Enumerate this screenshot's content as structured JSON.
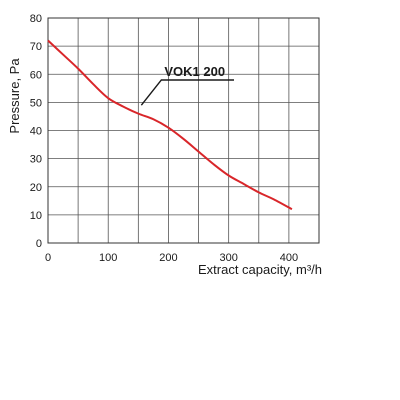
{
  "chart_data": {
    "type": "line",
    "title": "",
    "xlabel": "Extract capacity, m³/h",
    "ylabel": "Pressure, Pa",
    "xlim": [
      0,
      450
    ],
    "ylim": [
      0,
      80
    ],
    "x_ticks": [
      0,
      100,
      200,
      300,
      400
    ],
    "y_ticks": [
      0,
      10,
      20,
      30,
      40,
      50,
      60,
      70,
      80
    ],
    "grid": true,
    "series": [
      {
        "name": "VOK1 200",
        "color": "#d9262a",
        "x": [
          0,
          25,
          50,
          75,
          100,
          125,
          150,
          175,
          200,
          225,
          250,
          275,
          300,
          325,
          350,
          375,
          405
        ],
        "y": [
          72,
          67,
          62,
          56.5,
          51.5,
          48.5,
          46,
          44,
          41,
          37,
          32.5,
          28,
          24,
          21,
          18,
          15.5,
          12
        ]
      }
    ],
    "annotations": [
      {
        "text": "VOK1 200",
        "x": 155,
        "y": 49
      }
    ]
  }
}
